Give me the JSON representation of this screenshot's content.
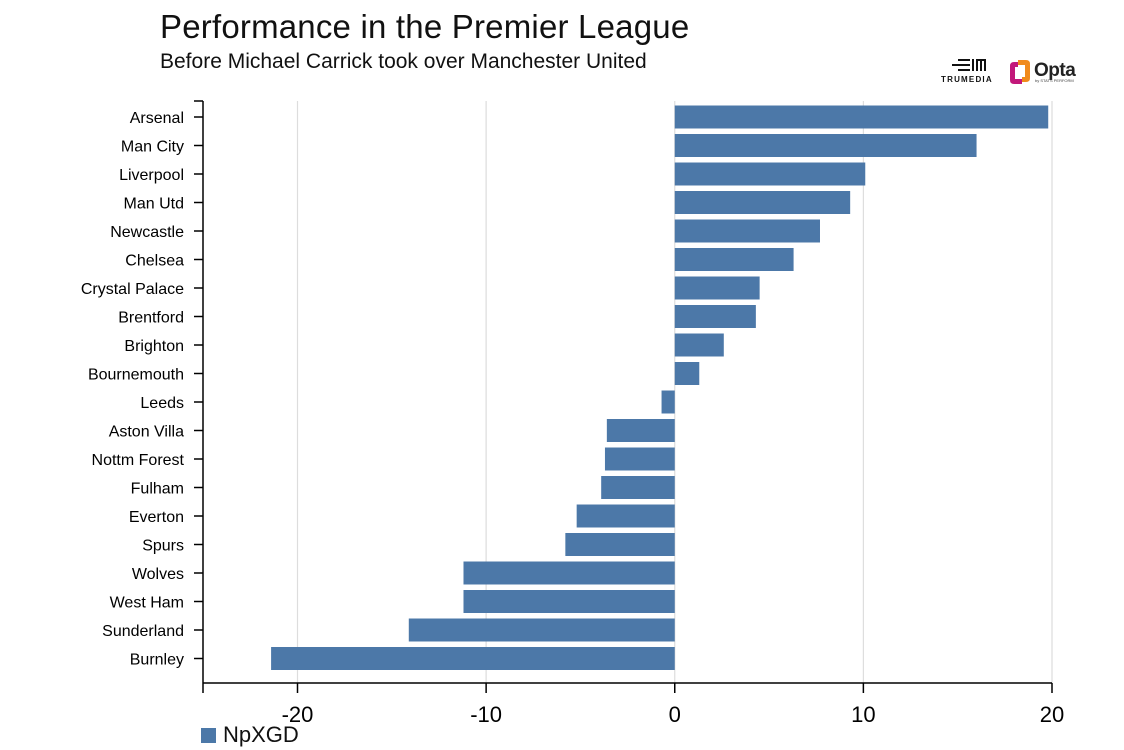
{
  "header": {
    "title": "Performance in the Premier League",
    "subtitle": "Before Michael Carrick took over Manchester United"
  },
  "logos": {
    "trumedia": "TRUMEDIA",
    "opta": "Opta",
    "opta_sub": "by STATS PERFORM"
  },
  "legend": {
    "label": "NpXGD"
  },
  "colors": {
    "bar": "#4c78a8",
    "grid": "#dddddd",
    "axis": "#000000",
    "opta_orange": "#f08a1c",
    "opta_magenta": "#c2187a"
  },
  "chart_data": {
    "type": "bar",
    "orientation": "horizontal",
    "categories": [
      "Arsenal",
      "Man City",
      "Liverpool",
      "Man Utd",
      "Newcastle",
      "Chelsea",
      "Crystal Palace",
      "Brentford",
      "Brighton",
      "Bournemouth",
      "Leeds",
      "Aston Villa",
      "Nottm Forest",
      "Fulham",
      "Everton",
      "Spurs",
      "Wolves",
      "West Ham",
      "Sunderland",
      "Burnley"
    ],
    "series": [
      {
        "name": "NpXGD",
        "values": [
          19.8,
          16.0,
          10.1,
          9.3,
          7.7,
          6.3,
          4.5,
          4.3,
          2.6,
          1.3,
          -0.7,
          -3.6,
          -3.7,
          -3.9,
          -5.2,
          -5.8,
          -11.2,
          -11.2,
          -14.1,
          -21.4
        ]
      }
    ],
    "xlim": [
      -25,
      20
    ],
    "xticks": [
      -20,
      -10,
      0,
      10,
      20
    ],
    "xlabel": "",
    "ylabel": "",
    "grid": "vertical",
    "legend_position": "bottom-left"
  }
}
